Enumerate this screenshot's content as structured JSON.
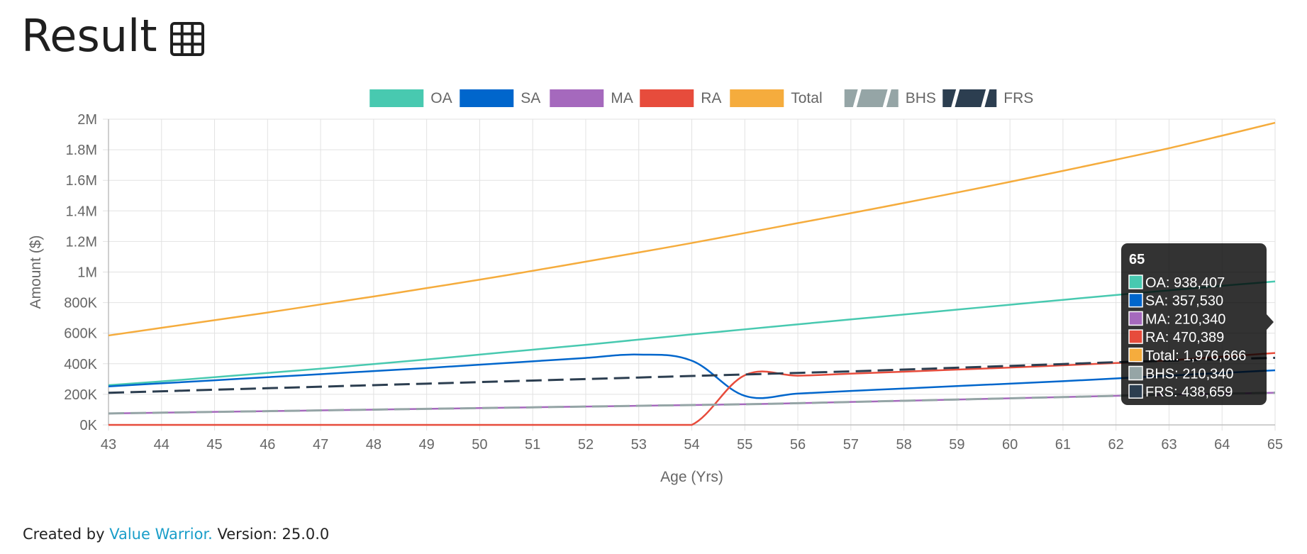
{
  "page": {
    "title": "Result",
    "title_icon": "table-grid-icon"
  },
  "footer": {
    "prefix": "Created by",
    "link_text": "Value Warrior.",
    "suffix": "Version: 25.0.0"
  },
  "chart_data": {
    "type": "line",
    "xlabel": "Age (Yrs)",
    "ylabel": "Amount ($)",
    "x": [
      43,
      44,
      45,
      46,
      47,
      48,
      49,
      50,
      51,
      52,
      53,
      54,
      55,
      56,
      57,
      58,
      59,
      60,
      61,
      62,
      63,
      64,
      65
    ],
    "xlim": [
      43,
      65
    ],
    "ylim": [
      0,
      2000000
    ],
    "y_ticks": [
      0,
      200000,
      400000,
      600000,
      800000,
      1000000,
      1200000,
      1400000,
      1600000,
      1800000,
      2000000
    ],
    "y_tick_labels": [
      "0K",
      "200K",
      "400K",
      "600K",
      "800K",
      "1M",
      "1.2M",
      "1.4M",
      "1.6M",
      "1.8M",
      "2M"
    ],
    "grid": true,
    "legend_position": "top",
    "series": [
      {
        "name": "OA",
        "color": "#48c9b0",
        "dashed": false,
        "values": [
          260000,
          285000,
          312000,
          340000,
          368000,
          398000,
          428000,
          460000,
          492000,
          524000,
          558000,
          592000,
          625000,
          658000,
          690000,
          722000,
          754000,
          786000,
          818000,
          850000,
          880000,
          910000,
          938407
        ]
      },
      {
        "name": "SA",
        "color": "#0066cc",
        "dashed": false,
        "values": [
          252000,
          272000,
          292000,
          312000,
          332000,
          352000,
          372000,
          394000,
          416000,
          438000,
          460000,
          420000,
          190000,
          205000,
          222000,
          238000,
          254000,
          270000,
          286000,
          304000,
          322000,
          340000,
          357530
        ]
      },
      {
        "name": "MA",
        "color": "#a569bd",
        "dashed": false,
        "values": [
          75000,
          80000,
          85000,
          90000,
          95000,
          100000,
          105000,
          110000,
          115000,
          120000,
          125000,
          130000,
          135000,
          142000,
          150000,
          158000,
          166000,
          174000,
          182000,
          190000,
          198000,
          204000,
          210340
        ]
      },
      {
        "name": "RA",
        "color": "#e74c3c",
        "dashed": false,
        "values": [
          0,
          0,
          0,
          0,
          0,
          0,
          0,
          0,
          0,
          0,
          0,
          0,
          325000,
          322000,
          335000,
          348000,
          362000,
          375000,
          390000,
          405000,
          422000,
          446000,
          470389
        ]
      },
      {
        "name": "Total",
        "color": "#f5ac3d",
        "dashed": false,
        "values": [
          585000,
          635000,
          685000,
          735000,
          788000,
          840000,
          895000,
          950000,
          1008000,
          1068000,
          1128000,
          1190000,
          1255000,
          1320000,
          1385000,
          1452000,
          1520000,
          1590000,
          1662000,
          1735000,
          1810000,
          1892000,
          1976666
        ]
      },
      {
        "name": "BHS",
        "color": "#95a5a6",
        "dashed": true,
        "values": [
          75000,
          80000,
          85000,
          90000,
          95000,
          100000,
          105000,
          110000,
          115000,
          120000,
          125000,
          130000,
          135000,
          142000,
          150000,
          158000,
          166000,
          174000,
          182000,
          190000,
          198000,
          204000,
          210340
        ]
      },
      {
        "name": "FRS",
        "color": "#2c3e50",
        "dashed": true,
        "values": [
          210000,
          220000,
          230000,
          240000,
          250000,
          260000,
          270000,
          280000,
          290000,
          300000,
          310000,
          320000,
          330000,
          340000,
          350000,
          362000,
          374000,
          386000,
          398000,
          410000,
          420000,
          430000,
          438659
        ]
      }
    ],
    "tooltip": {
      "title": "65",
      "items": [
        {
          "name": "OA",
          "value": "938,407",
          "color": "#48c9b0"
        },
        {
          "name": "SA",
          "value": "357,530",
          "color": "#0066cc"
        },
        {
          "name": "MA",
          "value": "210,340",
          "color": "#a569bd"
        },
        {
          "name": "RA",
          "value": "470,389",
          "color": "#e74c3c"
        },
        {
          "name": "Total",
          "value": "1,976,666",
          "color": "#f5ac3d"
        },
        {
          "name": "BHS",
          "value": "210,340",
          "color": "#95a5a6"
        },
        {
          "name": "FRS",
          "value": "438,659",
          "color": "#2c3e50"
        }
      ]
    }
  }
}
